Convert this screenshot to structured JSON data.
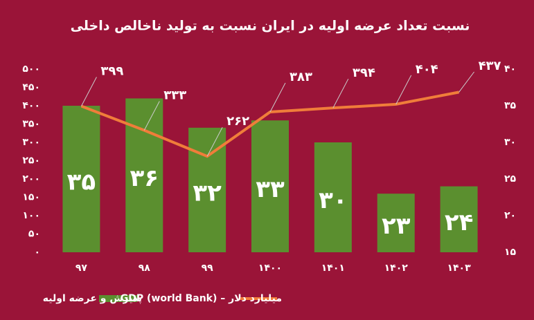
{
  "chart_data": {
    "type": "bar-line",
    "title": "نسبت تعداد عرضه اولیه در ایران نسبت به تولید ناخالص داخلی",
    "categories": [
      "۹۷",
      "۹۸",
      "۹۹",
      "۱۴۰۰",
      "۱۴۰۱",
      "۱۴۰۲",
      "۱۴۰۳"
    ],
    "series": [
      {
        "name": "پذیرش و عرضه اولیه",
        "type": "bar",
        "axis": "y2",
        "color": "#5b8f2f",
        "values": [
          35,
          36,
          32,
          33,
          30,
          23,
          24
        ],
        "value_labels": [
          "۳۵",
          "۳۶",
          "۳۲",
          "۳۳",
          "۳۰",
          "۲۳",
          "۲۴"
        ]
      },
      {
        "name": "میلیارد دلار – GDP (world Bank)",
        "type": "line",
        "axis": "y",
        "color": "#f07d3a",
        "values": [
          399,
          333,
          262,
          383,
          394,
          404,
          437
        ],
        "value_labels": [
          "۳۹۹",
          "۳۳۳",
          "۲۶۲",
          "۳۸۳",
          "۳۹۴",
          "۴۰۴",
          "۴۳۷"
        ]
      }
    ],
    "ylim": [
      0,
      500
    ],
    "yticks": [
      {
        "value": 0,
        "label": "۰"
      },
      {
        "value": 50,
        "label": "۵۰"
      },
      {
        "value": 100,
        "label": "۱۰۰"
      },
      {
        "value": 150,
        "label": "۱۵۰"
      },
      {
        "value": 200,
        "label": "۲۰۰"
      },
      {
        "value": 250,
        "label": "۲۵۰"
      },
      {
        "value": 300,
        "label": "۳۰۰"
      },
      {
        "value": 350,
        "label": "۳۵۰"
      },
      {
        "value": 400,
        "label": "۴۰۰"
      },
      {
        "value": 450,
        "label": "۴۵۰"
      },
      {
        "value": 500,
        "label": "۵۰۰"
      }
    ],
    "y2lim": [
      15,
      40
    ],
    "y2ticks": [
      {
        "value": 15,
        "label": "۱۵"
      },
      {
        "value": 20,
        "label": "۲۰"
      },
      {
        "value": 25,
        "label": "۲۵"
      },
      {
        "value": 30,
        "label": "۳۰"
      },
      {
        "value": 35,
        "label": "۳۵"
      },
      {
        "value": 40,
        "label": "۴۰"
      }
    ]
  }
}
